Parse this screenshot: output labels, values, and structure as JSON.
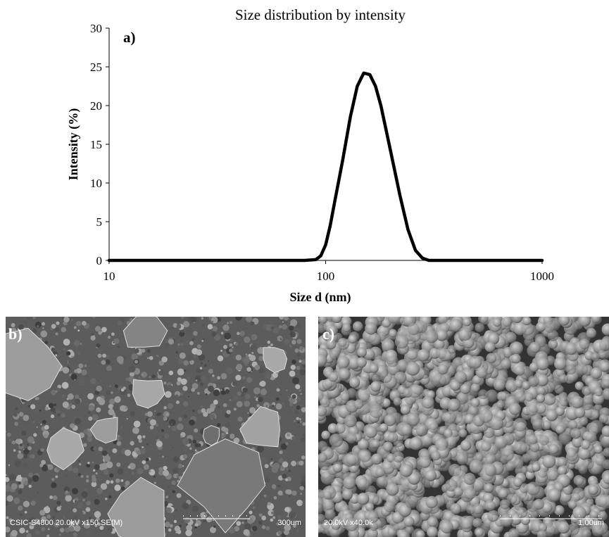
{
  "chart_data": {
    "type": "line",
    "title": "Size distribution by intensity",
    "annotation": "a)",
    "x_label": "Size d (nm)",
    "y_label": "Intensity (%)",
    "x": [
      10,
      50,
      80,
      90,
      95,
      100,
      105,
      110,
      120,
      130,
      140,
      150,
      160,
      170,
      180,
      200,
      220,
      240,
      260,
      280,
      300,
      400,
      1000
    ],
    "values": [
      0,
      0,
      0,
      0.1,
      0.6,
      2,
      4.5,
      7.5,
      13,
      18.5,
      22.5,
      24.2,
      24,
      22.5,
      20,
      14,
      8.5,
      4,
      1.3,
      0.3,
      0,
      0,
      0
    ],
    "color": "#000000",
    "x_log": true,
    "grid": false,
    "xlim": [
      10,
      1000
    ],
    "xticks": [
      10,
      100,
      1000
    ],
    "ylim": [
      0,
      30
    ],
    "yticks": [
      0,
      5,
      10,
      15,
      20,
      25,
      30
    ]
  },
  "images": [
    {
      "label": "b)",
      "caption": "CSIC-S4800 20.0kV x150 SE(M)",
      "scale": "300um"
    },
    {
      "label": "c)",
      "caption": "20.0kV x40.0k",
      "scale": "1.00um"
    }
  ]
}
